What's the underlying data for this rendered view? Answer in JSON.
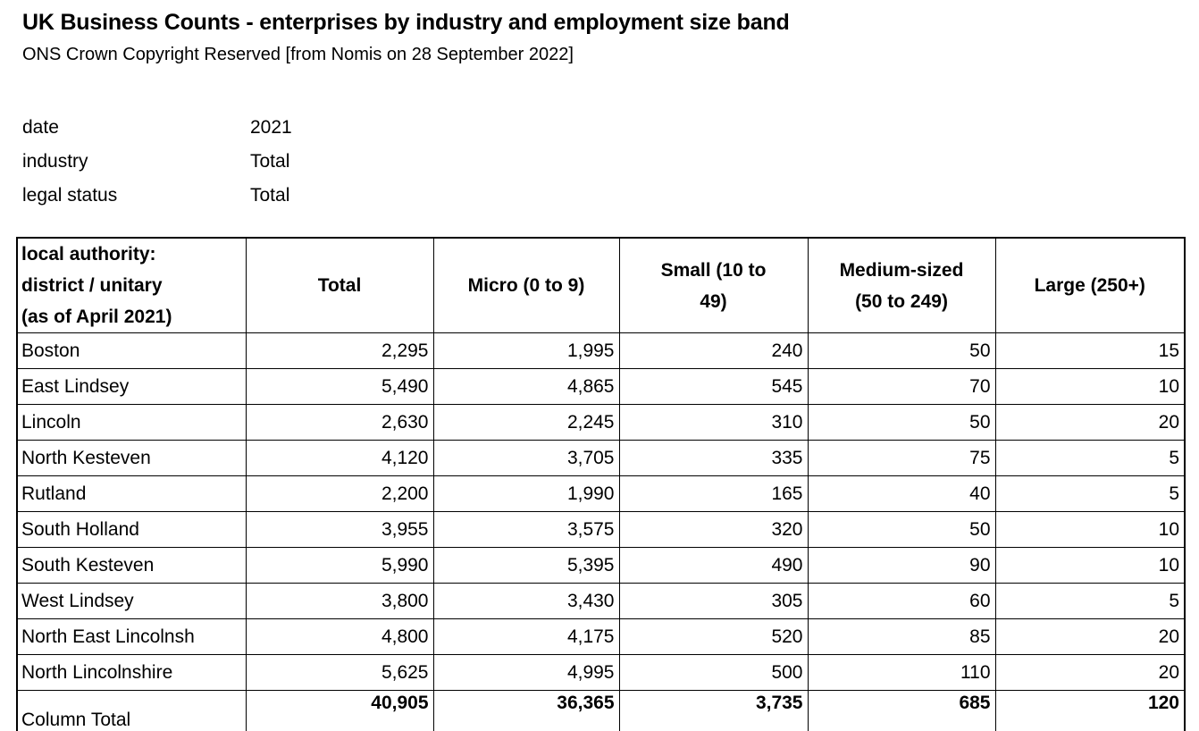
{
  "header": {
    "title": "UK Business Counts - enterprises by industry and employment size band",
    "subtitle": "ONS Crown Copyright Reserved [from Nomis on 28 September 2022]"
  },
  "filters": [
    {
      "label": "date",
      "value": "2021"
    },
    {
      "label": "industry",
      "value": "Total"
    },
    {
      "label": "legal status",
      "value": "Total"
    }
  ],
  "table": {
    "columns": [
      "local authority:\ndistrict / unitary\n(as of April 2021)",
      "Total",
      "Micro (0 to 9)",
      "Small (10 to\n49)",
      "Medium-sized\n(50 to 249)",
      "Large (250+)"
    ],
    "rows": [
      {
        "label": "Boston",
        "values": [
          "2,295",
          "1,995",
          "240",
          "50",
          "15"
        ]
      },
      {
        "label": "East Lindsey",
        "values": [
          "5,490",
          "4,865",
          "545",
          "70",
          "10"
        ]
      },
      {
        "label": "Lincoln",
        "values": [
          "2,630",
          "2,245",
          "310",
          "50",
          "20"
        ]
      },
      {
        "label": "North Kesteven",
        "values": [
          "4,120",
          "3,705",
          "335",
          "75",
          "5"
        ]
      },
      {
        "label": "Rutland",
        "values": [
          "2,200",
          "1,990",
          "165",
          "40",
          "5"
        ]
      },
      {
        "label": "South Holland",
        "values": [
          "3,955",
          "3,575",
          "320",
          "50",
          "10"
        ]
      },
      {
        "label": "South Kesteven",
        "values": [
          "5,990",
          "5,395",
          "490",
          "90",
          "10"
        ]
      },
      {
        "label": "West Lindsey",
        "values": [
          "3,800",
          "3,430",
          "305",
          "60",
          "5"
        ]
      },
      {
        "label": "North East Lincolnsh",
        "values": [
          "4,800",
          "4,175",
          "520",
          "85",
          "20"
        ]
      },
      {
        "label": "North Lincolnshire",
        "values": [
          "5,625",
          "4,995",
          "500",
          "110",
          "20"
        ]
      }
    ],
    "total": {
      "label": "Column Total",
      "values": [
        "40,905",
        "36,365",
        "3,735",
        "685",
        "120"
      ]
    }
  }
}
